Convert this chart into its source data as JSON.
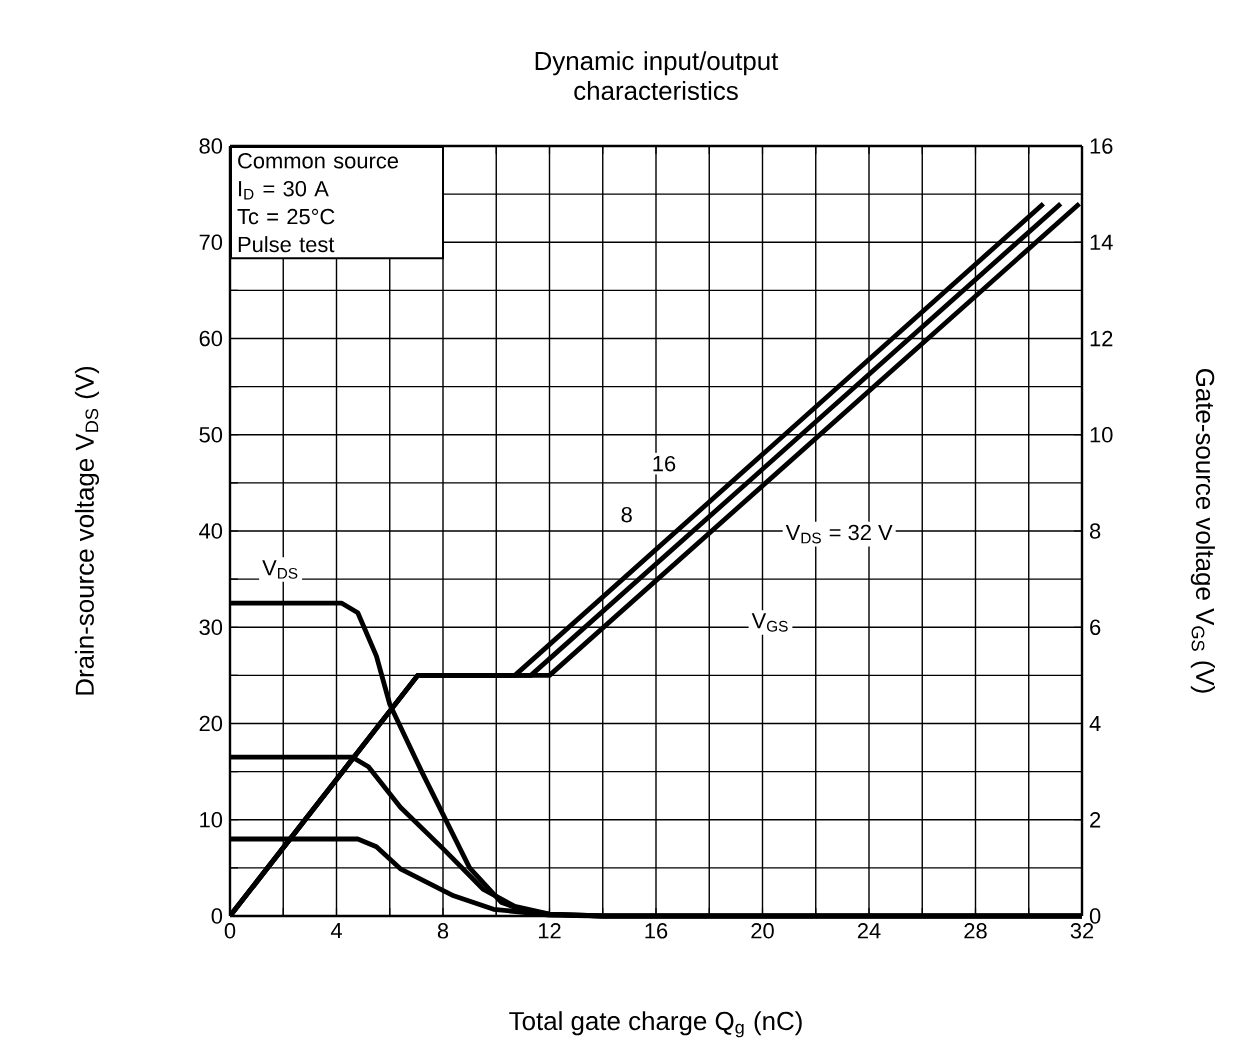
{
  "chart_data": {
    "type": "line",
    "title": "Dynamic input/output characteristics",
    "xlabel": "Total gate charge    Q$_{g}$    (nC)",
    "ylabel": "Drain-source voltage    V$_{DS}$    (V)",
    "y2label": "Gate-source voltage    V$_{GS}$    (V)",
    "xlim": [
      0,
      32
    ],
    "ylim": [
      0,
      80
    ],
    "y2lim": [
      0,
      16
    ],
    "xticks": [
      0,
      {
        "value": 2,
        "label": null
      },
      4,
      {
        "value": 6,
        "label": null
      },
      8,
      {
        "value": 10,
        "label": null
      },
      12,
      {
        "value": 14,
        "label": null
      },
      16,
      {
        "value": 18,
        "label": null
      },
      20,
      {
        "value": 22,
        "label": null
      },
      24,
      {
        "value": 26,
        "label": null
      },
      28,
      {
        "value": 30,
        "label": null
      },
      32
    ],
    "yticks": [
      0,
      {
        "value": 5,
        "label": null
      },
      10,
      {
        "value": 15,
        "label": null
      },
      20,
      {
        "value": 25,
        "label": null
      },
      30,
      {
        "value": 35,
        "label": null
      },
      40,
      {
        "value": 45,
        "label": null
      },
      50,
      {
        "value": 55,
        "label": null
      },
      60,
      {
        "value": 65,
        "label": null
      },
      70,
      {
        "value": 75,
        "label": null
      },
      80
    ],
    "y2ticks": [
      0,
      2,
      4,
      6,
      8,
      10,
      12,
      14,
      16
    ],
    "grid": true,
    "marker": "none",
    "line_style": "solid",
    "series": [
      {
        "color": "#000000",
        "x": [
          0,
          4.2,
          4.8,
          5.5,
          6,
          7.2,
          8.1,
          9,
          10.2,
          11,
          12,
          14,
          32
        ],
        "values": [
          32.5,
          32.5,
          31.5,
          27,
          22,
          15,
          10,
          5,
          1.4,
          0.6,
          0.2,
          0,
          0
        ]
      },
      {
        "color": "#000000",
        "x": [
          0,
          4.6,
          5.2,
          6.4,
          8,
          9.5,
          10.7,
          12,
          14,
          32
        ],
        "values": [
          16.5,
          16.5,
          15.5,
          11.3,
          7,
          2.8,
          1,
          0.2,
          0,
          0
        ]
      },
      {
        "color": "#000000",
        "x": [
          0,
          4.8,
          5.5,
          6.4,
          8.4,
          9.9,
          12,
          14,
          32
        ],
        "values": [
          8,
          8,
          7.2,
          4.9,
          2.1,
          0.7,
          0.1,
          0,
          0
        ]
      },
      {
        "color": "#000000",
        "axis": "y2",
        "x": [
          0,
          7.05,
          10.7,
          30.55
        ],
        "values": [
          0,
          5,
          5,
          14.8
        ]
      },
      {
        "color": "#000000",
        "axis": "y2",
        "x": [
          0,
          7.05,
          11.3,
          31.2
        ],
        "values": [
          0,
          5,
          5,
          14.8
        ]
      },
      {
        "color": "#000000",
        "axis": "y2",
        "x": [
          0,
          7.05,
          12,
          31.9
        ],
        "values": [
          0,
          5,
          5,
          14.8
        ]
      }
    ],
    "annotations": [
      "Common source",
      "I$_{D}$ = 30 A",
      "Tc = 25°C",
      "Pulse test",
      {
        "text": "V$_{DS}$",
        "x": 1.9,
        "y": 36
      },
      {
        "text": "V$_{GS}$",
        "x": 20.3,
        "y": 30.5
      },
      {
        "text": "8",
        "x": 14.9,
        "y": 41.7
      },
      {
        "text": "16",
        "x": 16.3,
        "y": 47
      },
      "V$_{DS}$ = 32 V"
    ]
  }
}
